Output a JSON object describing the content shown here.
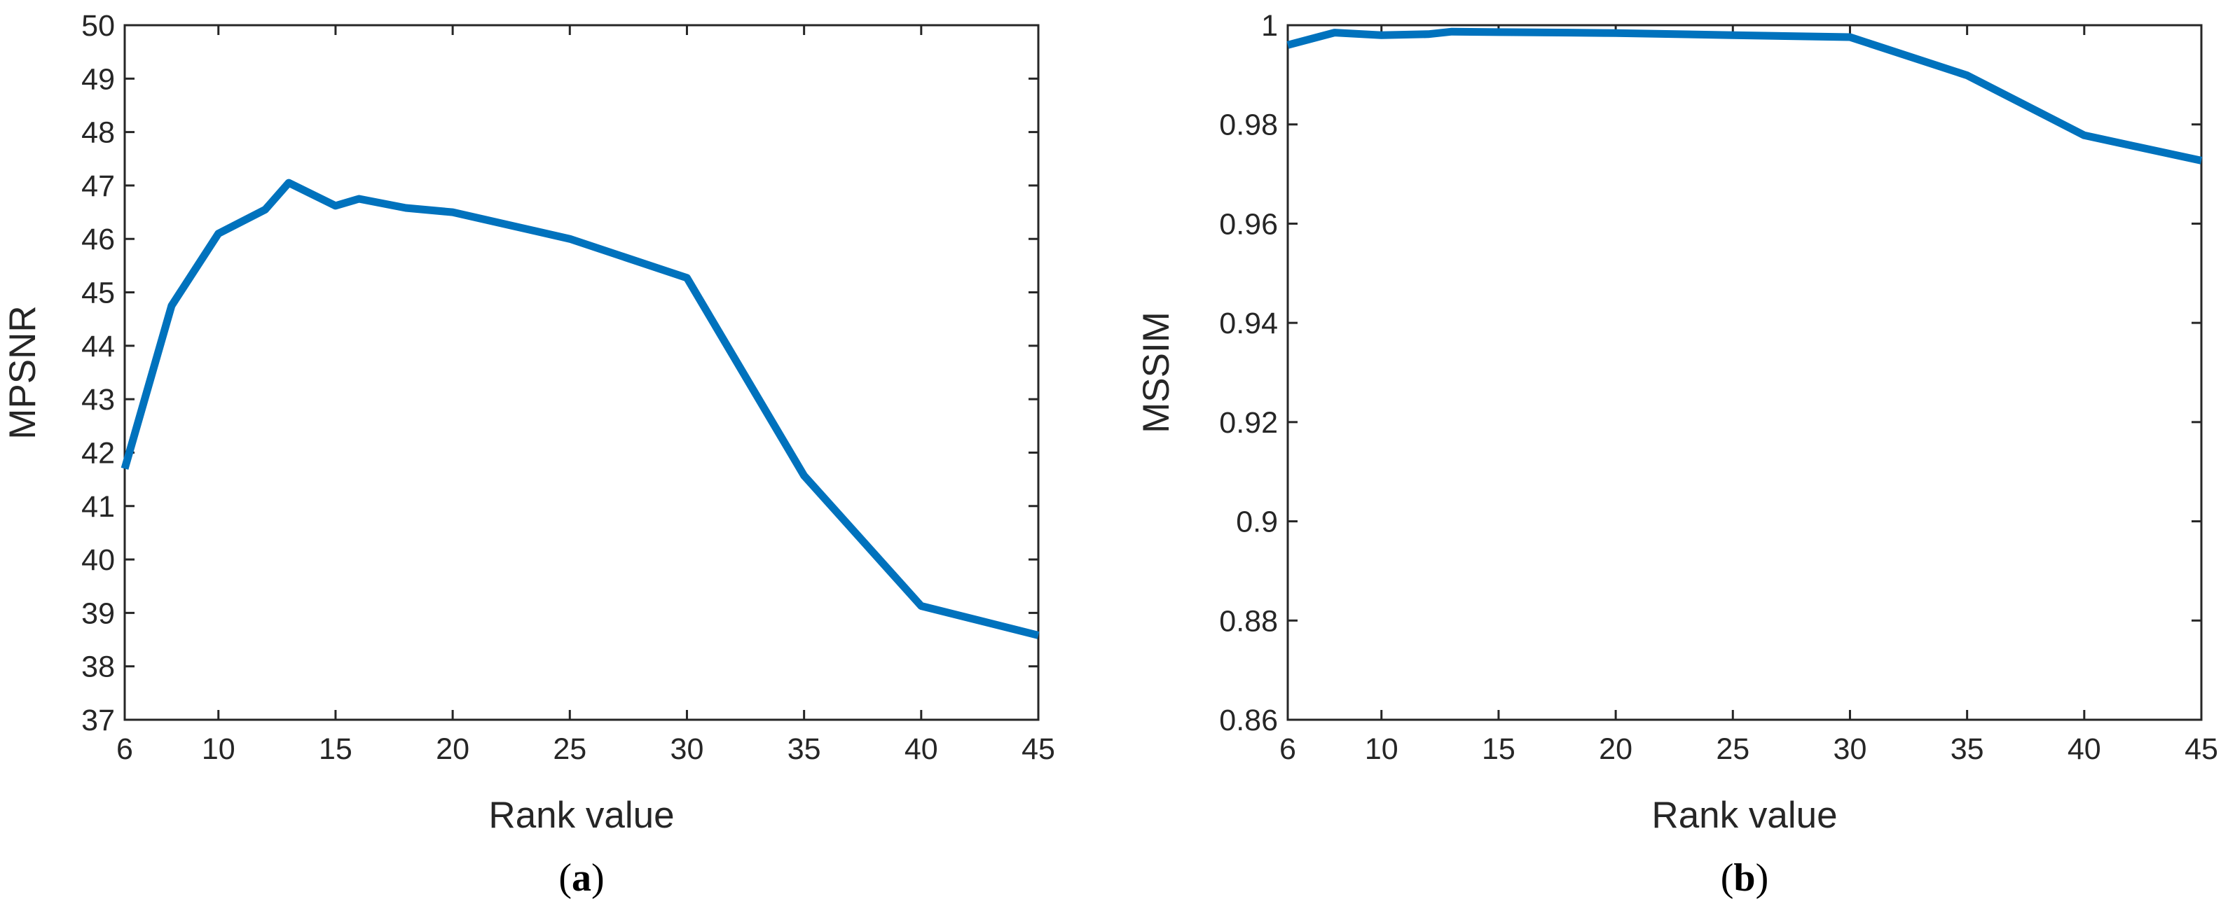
{
  "chart_data": [
    {
      "type": "line",
      "panel": "(a)",
      "panel_letter": "a",
      "xlabel": "Rank value",
      "ylabel": "MPSNR",
      "xlim": [
        6,
        45
      ],
      "ylim": [
        37,
        50
      ],
      "xticks": [
        6,
        10,
        15,
        20,
        25,
        30,
        35,
        40,
        45
      ],
      "yticks": [
        37,
        38,
        39,
        40,
        41,
        42,
        43,
        44,
        45,
        46,
        47,
        48,
        49,
        50
      ],
      "ytick_labels": [
        "37",
        "38",
        "39",
        "40",
        "41",
        "42",
        "43",
        "44",
        "45",
        "46",
        "47",
        "48",
        "49",
        "50"
      ],
      "grid": false,
      "series": [
        {
          "color": "#0072BD",
          "x": [
            6,
            8,
            10,
            12,
            13,
            15,
            16,
            18,
            20,
            25,
            30,
            35,
            40,
            45
          ],
          "y": [
            41.7,
            44.75,
            46.1,
            46.55,
            47.05,
            46.62,
            46.75,
            46.58,
            46.5,
            46.0,
            45.27,
            41.57,
            39.13,
            38.58
          ]
        }
      ]
    },
    {
      "type": "line",
      "panel": "(b)",
      "panel_letter": "b",
      "xlabel": "Rank value",
      "ylabel": "MSSIM",
      "xlim": [
        6,
        45
      ],
      "ylim": [
        0.86,
        1.0
      ],
      "xticks": [
        6,
        10,
        15,
        20,
        25,
        30,
        35,
        40,
        45
      ],
      "yticks": [
        0.86,
        0.88,
        0.9,
        0.92,
        0.94,
        0.96,
        0.98,
        1.0
      ],
      "ytick_labels": [
        "0.86",
        "0.88",
        "0.9",
        "0.92",
        "0.94",
        "0.96",
        "0.98",
        "1"
      ],
      "grid": false,
      "series": [
        {
          "color": "#0072BD",
          "x": [
            6,
            8,
            10,
            12,
            13,
            15,
            18,
            20,
            25,
            30,
            35,
            40,
            45
          ],
          "y": [
            0.996,
            0.9985,
            0.998,
            0.9982,
            0.9987,
            0.9986,
            0.9985,
            0.9984,
            0.998,
            0.9976,
            0.9899,
            0.9778,
            0.9727
          ]
        }
      ]
    }
  ]
}
